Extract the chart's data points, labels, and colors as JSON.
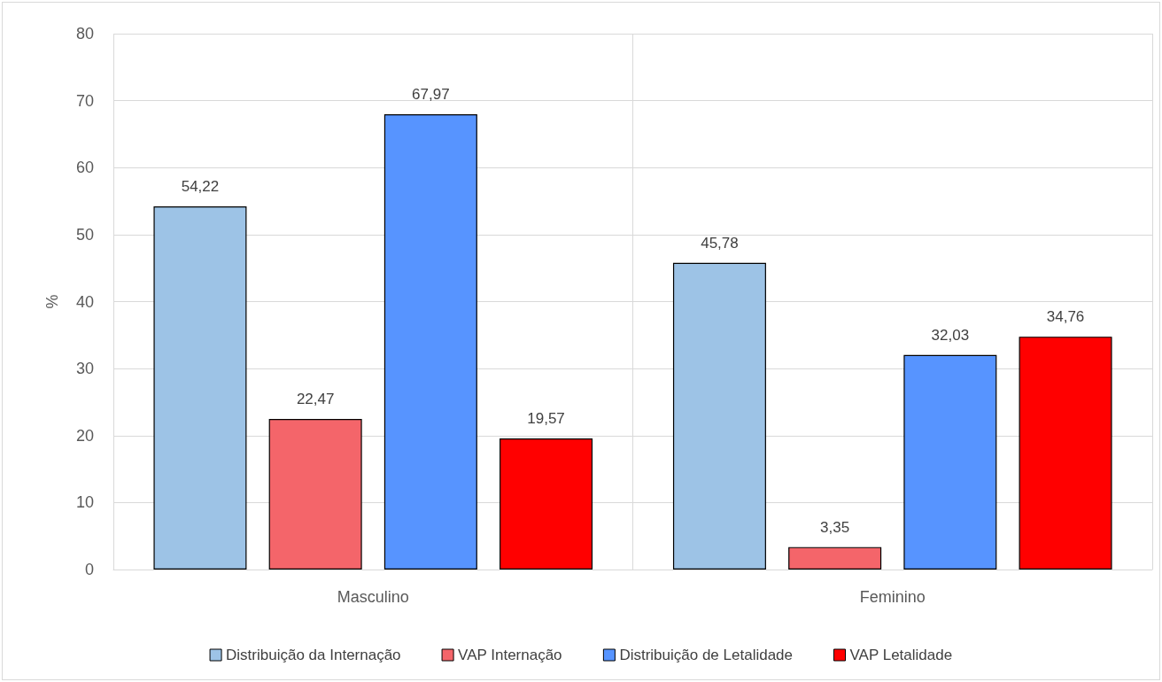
{
  "chart_data": {
    "type": "bar",
    "ylabel": "%",
    "categories": [
      "Masculino",
      "Feminino"
    ],
    "series": [
      {
        "name": "Distribuição da Internação",
        "color": "#9dc3e6",
        "values": [
          54.22,
          45.78
        ],
        "value_labels": [
          "54,22",
          "45,78"
        ]
      },
      {
        "name": "VAP Internação",
        "color": "#f4656a",
        "values": [
          22.47,
          3.35
        ],
        "value_labels": [
          "22,47",
          "3,35"
        ]
      },
      {
        "name": "Distribuição de Letalidade",
        "color": "#5794ff",
        "values": [
          67.97,
          32.03
        ],
        "value_labels": [
          "67,97",
          "32,03"
        ]
      },
      {
        "name": "VAP Letalidade",
        "color": "#ff0000",
        "values": [
          19.57,
          34.76
        ],
        "value_labels": [
          "19,57",
          "34,76"
        ]
      }
    ],
    "ylim": [
      0,
      80
    ],
    "yticks": [
      0,
      10,
      20,
      30,
      40,
      50,
      60,
      70,
      80
    ],
    "grid": true,
    "legend": "bottom"
  }
}
